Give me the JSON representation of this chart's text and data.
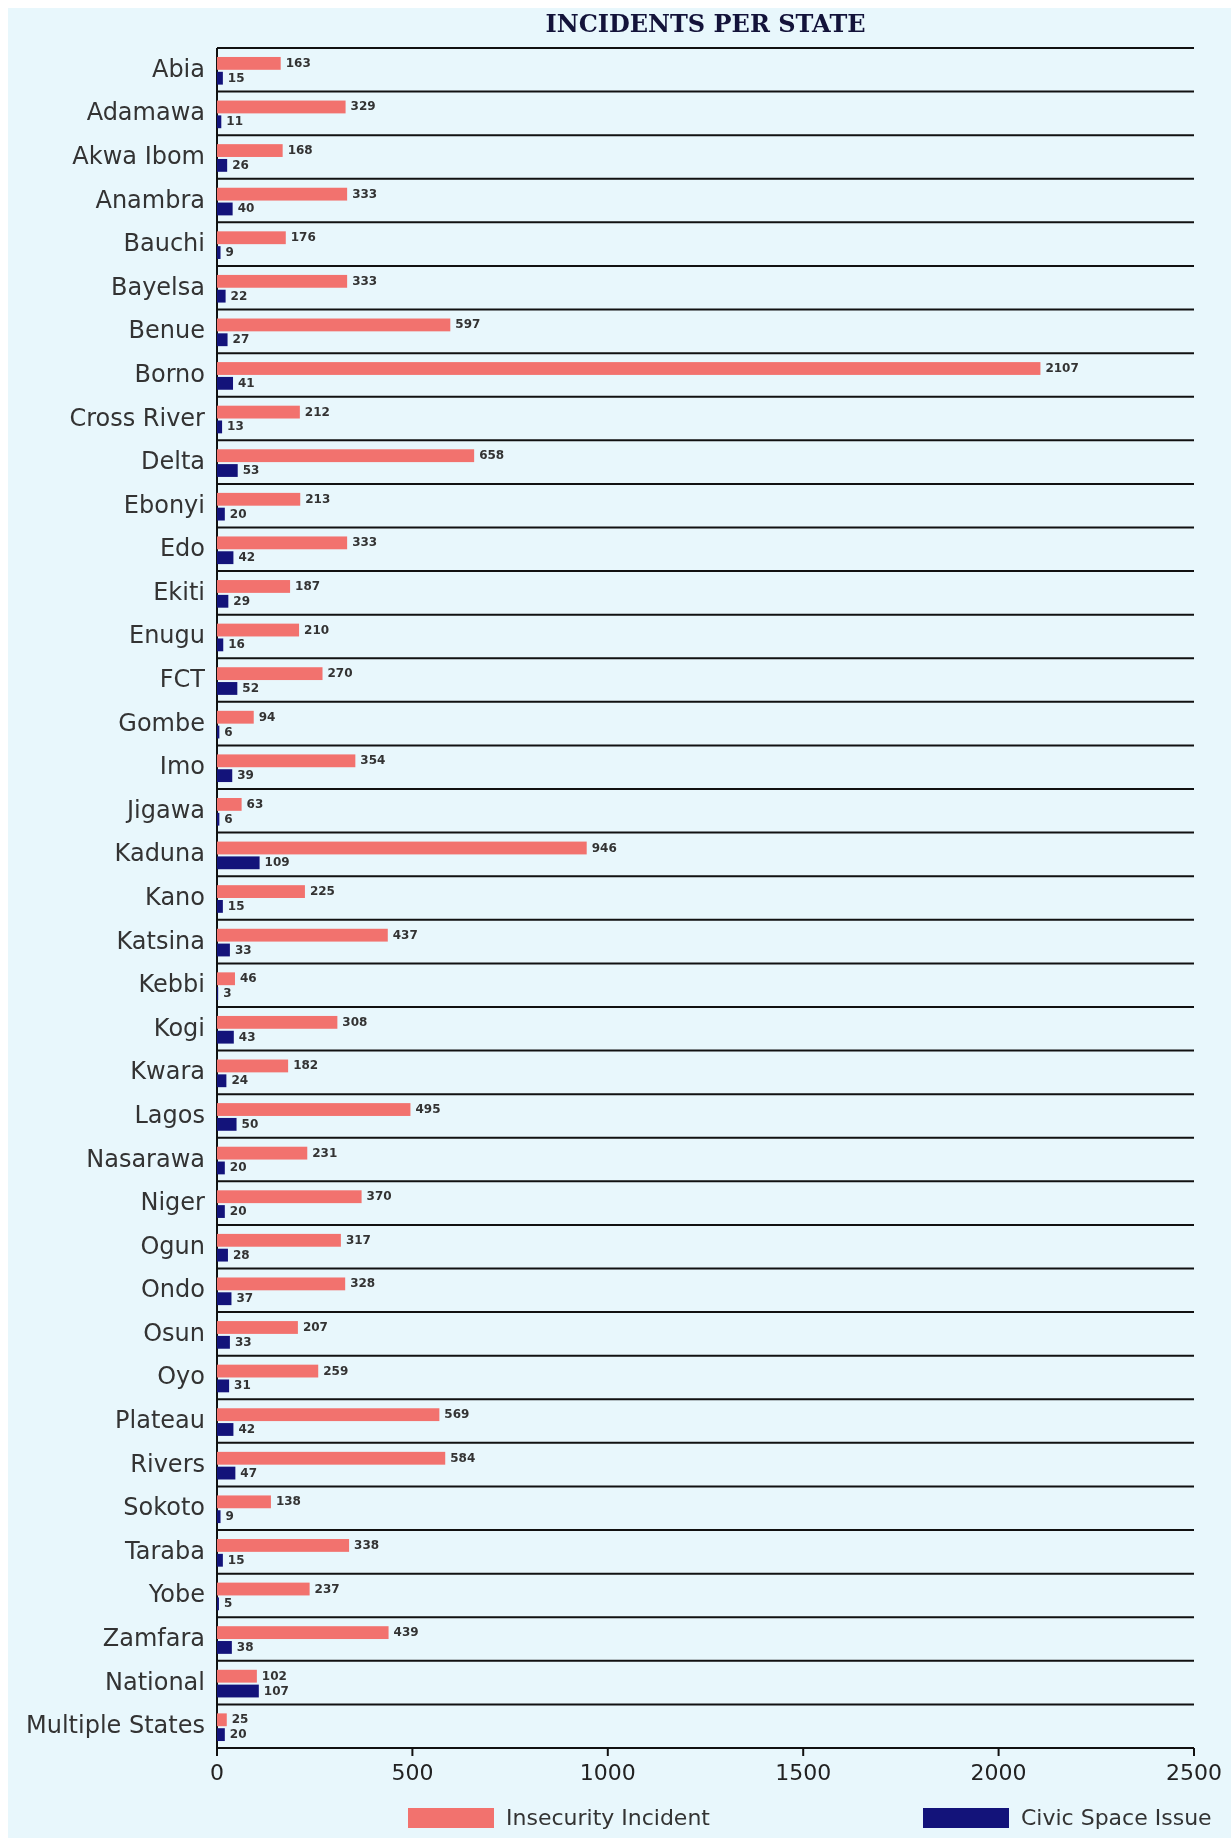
{
  "chart_data": {
    "type": "bar",
    "orientation": "horizontal",
    "title": "INCIDENTS PER STATE",
    "categories": [
      "Abia",
      "Adamawa",
      "Akwa Ibom",
      "Anambra",
      "Bauchi",
      "Bayelsa",
      "Benue",
      "Borno",
      "Cross River",
      "Delta",
      "Ebonyi",
      "Edo",
      "Ekiti",
      "Enugu",
      "FCT",
      "Gombe",
      "Imo",
      "Jigawa",
      "Kaduna",
      "Kano",
      "Katsina",
      "Kebbi",
      "Kogi",
      "Kwara",
      "Lagos",
      "Nasarawa",
      "Niger",
      "Ogun",
      "Ondo",
      "Osun",
      "Oyo",
      "Plateau",
      "Rivers",
      "Sokoto",
      "Taraba",
      "Yobe",
      "Zamfara",
      "National",
      "Multiple States"
    ],
    "series": [
      {
        "name": "Insecurity Incident",
        "color": "#f2726e",
        "values": [
          163,
          329,
          168,
          333,
          176,
          333,
          597,
          2107,
          212,
          658,
          213,
          333,
          187,
          210,
          270,
          94,
          354,
          63,
          946,
          225,
          437,
          46,
          308,
          182,
          495,
          231,
          370,
          317,
          328,
          207,
          259,
          569,
          584,
          138,
          338,
          237,
          439,
          102,
          25
        ]
      },
      {
        "name": "Civic Space Issue",
        "color": "#13137a",
        "values": [
          15,
          11,
          26,
          40,
          9,
          22,
          27,
          41,
          13,
          53,
          20,
          42,
          29,
          16,
          52,
          6,
          39,
          6,
          109,
          15,
          33,
          3,
          43,
          24,
          50,
          20,
          20,
          28,
          37,
          33,
          31,
          42,
          47,
          9,
          15,
          5,
          38,
          107,
          20
        ]
      }
    ],
    "xlim": [
      0,
      2500
    ],
    "xticks": [
      0,
      500,
      1000,
      1500,
      2000,
      2500
    ],
    "grid": "y",
    "legend": "bottom",
    "data_labels": true
  }
}
